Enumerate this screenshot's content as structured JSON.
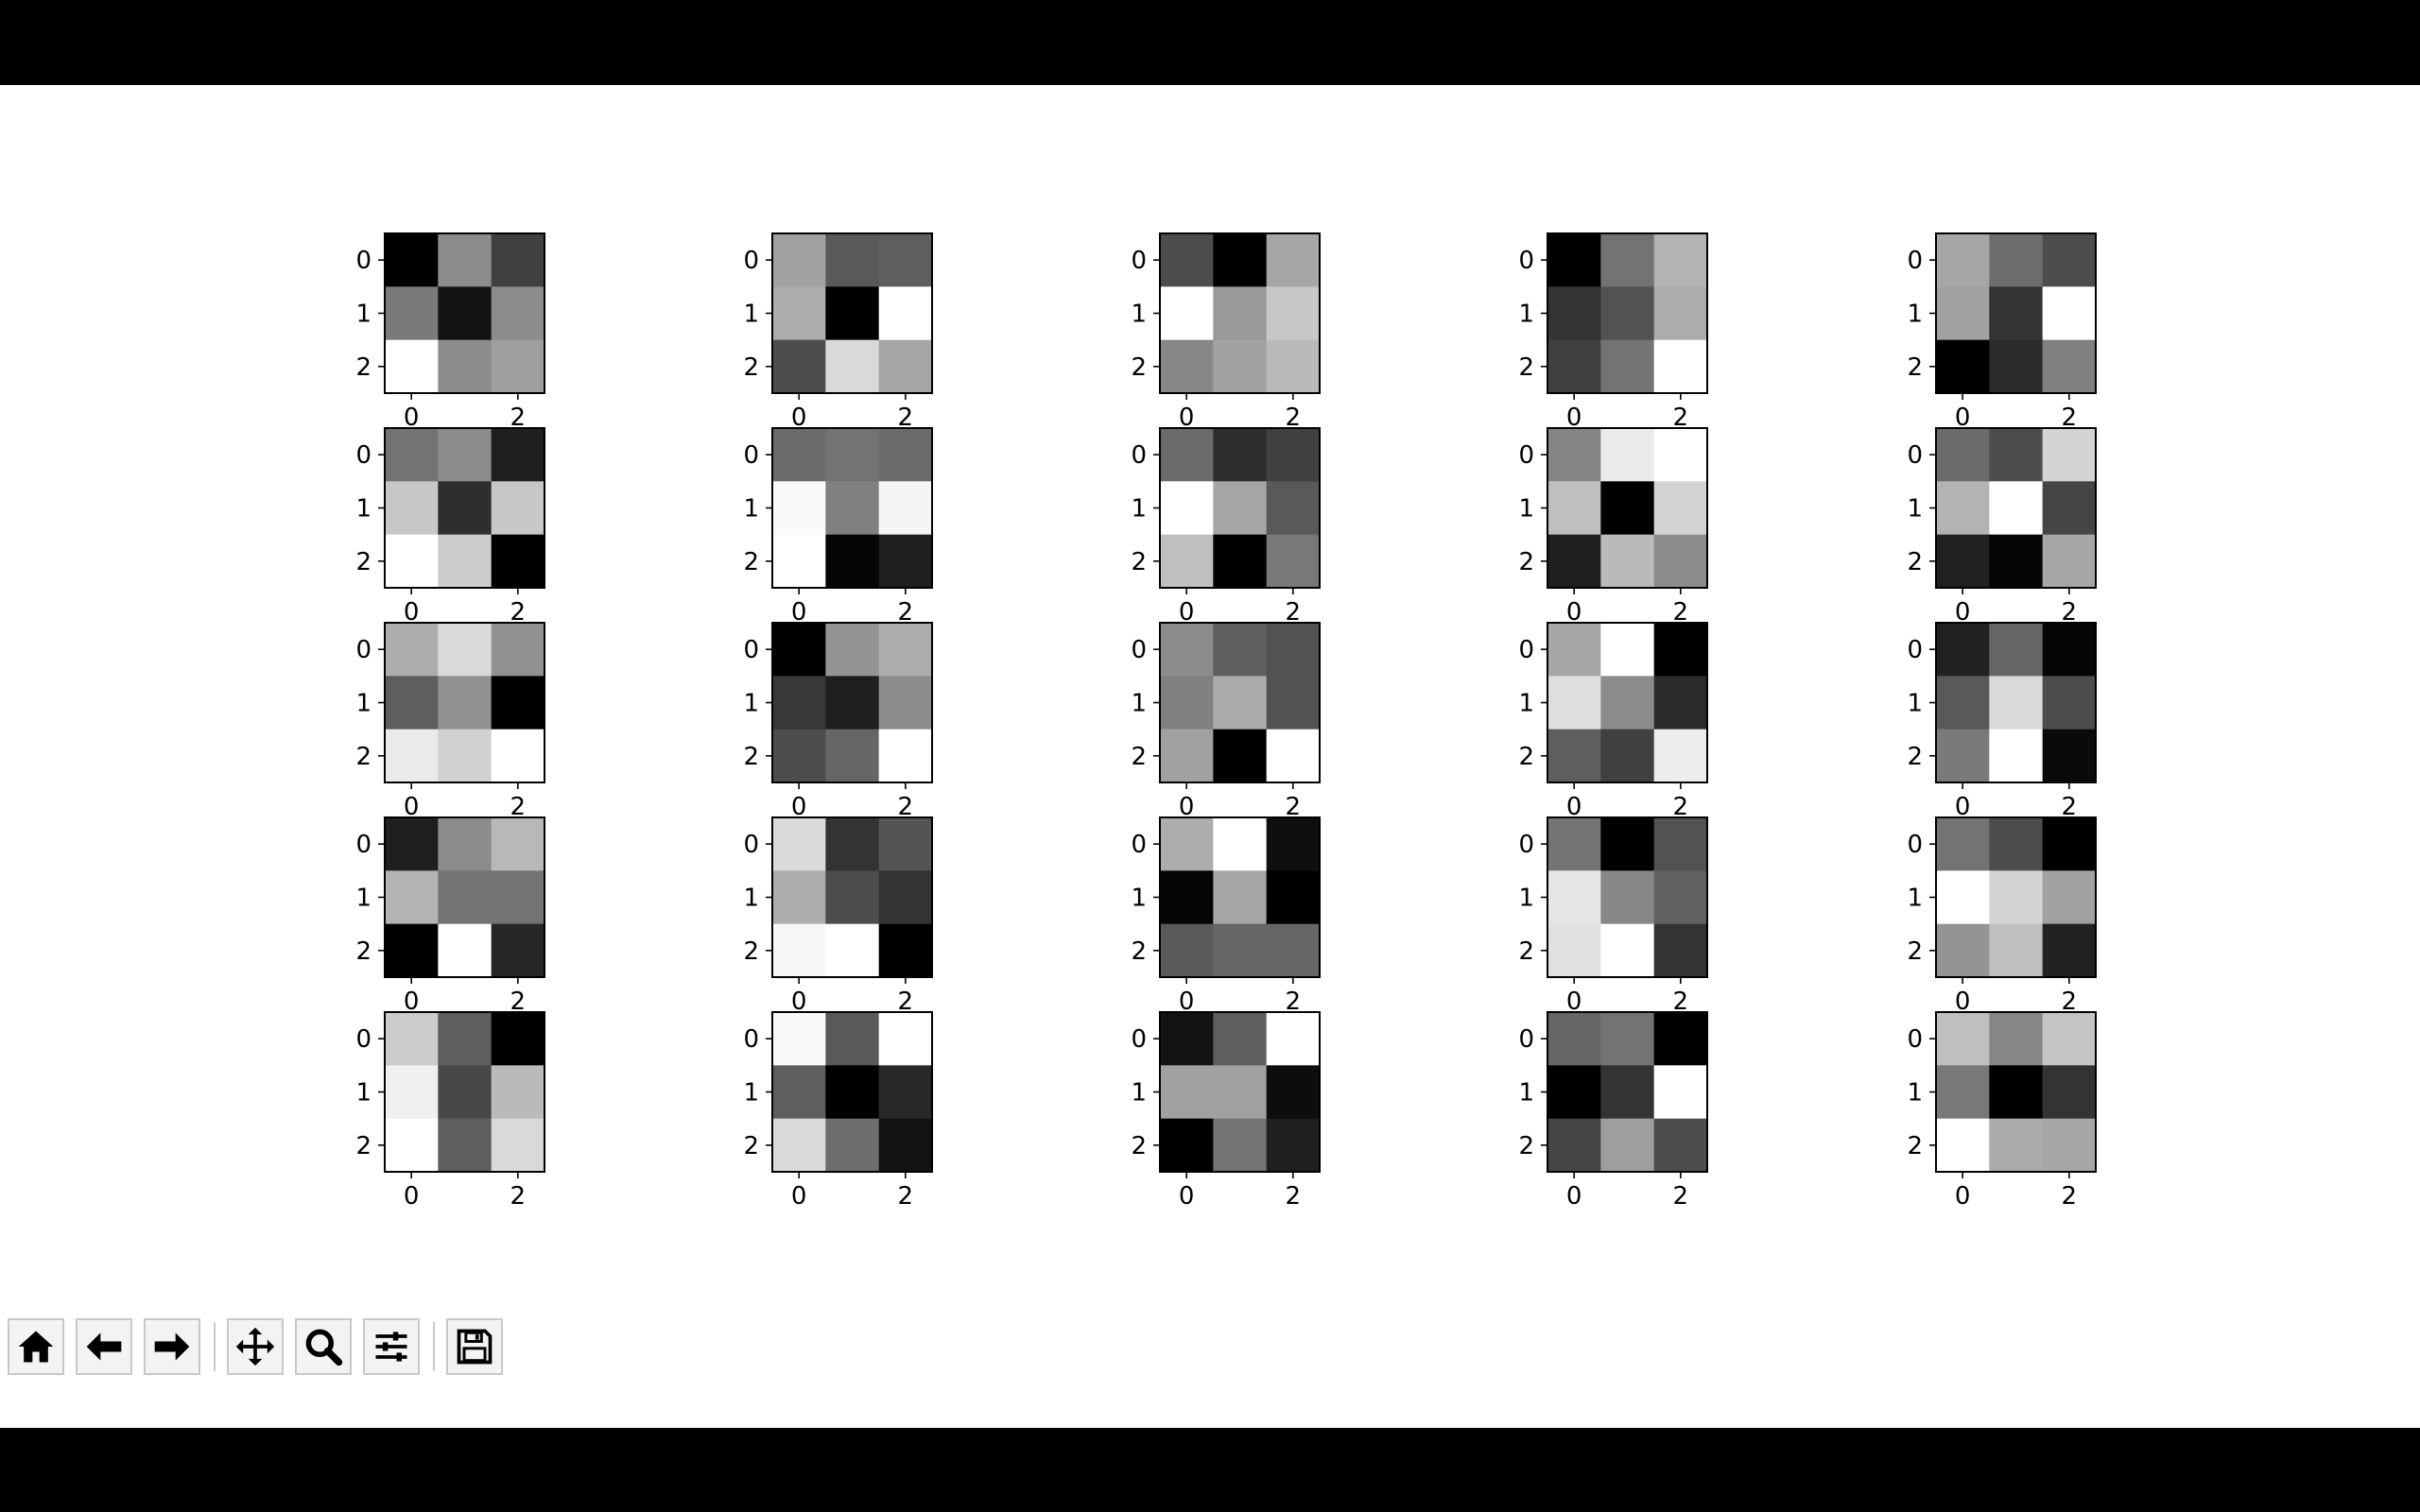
{
  "toolbar": {
    "buttons": [
      {
        "name": "home-button",
        "icon": "home-icon"
      },
      {
        "name": "back-button",
        "icon": "arrow-left-icon"
      },
      {
        "name": "forward-button",
        "icon": "arrow-right-icon"
      },
      {
        "name": "pan-button",
        "icon": "move-icon"
      },
      {
        "name": "zoom-button",
        "icon": "magnifier-icon"
      },
      {
        "name": "configure-subplots-button",
        "icon": "sliders-icon"
      },
      {
        "name": "save-button",
        "icon": "floppy-disk-icon"
      }
    ]
  },
  "chart_data": {
    "type": "heatmap",
    "colormap": "gray",
    "grid": "5x5",
    "xticks": [
      "0",
      "2"
    ],
    "yticks": [
      "0",
      "1",
      "2"
    ],
    "xlim": [
      -0.5,
      2.5
    ],
    "ylim": [
      2.5,
      -0.5
    ],
    "panels": [
      [
        [
          0.0,
          0.55,
          0.25
        ],
        [
          0.48,
          0.08,
          0.55
        ],
        [
          1.0,
          0.55,
          0.62
        ]
      ],
      [
        [
          0.63,
          0.35,
          0.37
        ],
        [
          0.68,
          0.0,
          1.0
        ],
        [
          0.3,
          0.85,
          0.65
        ]
      ],
      [
        [
          0.3,
          0.0,
          0.65
        ],
        [
          1.0,
          0.6,
          0.78
        ],
        [
          0.53,
          0.63,
          0.73
        ]
      ],
      [
        [
          0.0,
          0.45,
          0.7
        ],
        [
          0.2,
          0.32,
          0.68
        ],
        [
          0.25,
          0.45,
          1.0
        ]
      ],
      [
        [
          0.65,
          0.43,
          0.3
        ],
        [
          0.63,
          0.2,
          1.0
        ],
        [
          0.0,
          0.17,
          0.5
        ]
      ],
      [
        [
          0.45,
          0.55,
          0.12
        ],
        [
          0.78,
          0.18,
          0.78
        ],
        [
          1.0,
          0.8,
          0.0
        ]
      ],
      [
        [
          0.42,
          0.45,
          0.42
        ],
        [
          0.98,
          0.5,
          0.96
        ],
        [
          1.0,
          0.02,
          0.12
        ]
      ],
      [
        [
          0.42,
          0.18,
          0.25
        ],
        [
          1.0,
          0.65,
          0.35
        ],
        [
          0.75,
          0.0,
          0.47
        ]
      ],
      [
        [
          0.52,
          0.92,
          1.0
        ],
        [
          0.75,
          0.0,
          0.83
        ],
        [
          0.12,
          0.73,
          0.55
        ]
      ],
      [
        [
          0.42,
          0.3,
          0.83
        ],
        [
          0.7,
          1.0,
          0.27
        ],
        [
          0.13,
          0.02,
          0.65
        ]
      ],
      [
        [
          0.68,
          0.85,
          0.57
        ],
        [
          0.37,
          0.57,
          0.0
        ],
        [
          0.92,
          0.82,
          1.0
        ]
      ],
      [
        [
          0.0,
          0.58,
          0.68
        ],
        [
          0.22,
          0.12,
          0.55
        ],
        [
          0.3,
          0.4,
          1.0
        ]
      ],
      [
        [
          0.55,
          0.37,
          0.32
        ],
        [
          0.5,
          0.67,
          0.32
        ],
        [
          0.63,
          0.0,
          1.0
        ]
      ],
      [
        [
          0.65,
          1.0,
          0.0
        ],
        [
          0.87,
          0.55,
          0.17
        ],
        [
          0.37,
          0.25,
          0.93
        ]
      ],
      [
        [
          0.13,
          0.4,
          0.02
        ],
        [
          0.35,
          0.85,
          0.3
        ],
        [
          0.48,
          1.0,
          0.04
        ]
      ],
      [
        [
          0.12,
          0.55,
          0.72
        ],
        [
          0.7,
          0.45,
          0.45
        ],
        [
          0.0,
          1.0,
          0.15
        ]
      ],
      [
        [
          0.86,
          0.2,
          0.33
        ],
        [
          0.68,
          0.3,
          0.2
        ],
        [
          0.97,
          1.0,
          0.0
        ]
      ],
      [
        [
          0.68,
          1.0,
          0.06
        ],
        [
          0.02,
          0.65,
          0.0
        ],
        [
          0.35,
          0.4,
          0.4
        ]
      ],
      [
        [
          0.45,
          0.0,
          0.32
        ],
        [
          0.9,
          0.53,
          0.38
        ],
        [
          0.88,
          1.0,
          0.2
        ]
      ],
      [
        [
          0.45,
          0.3,
          0.0
        ],
        [
          1.0,
          0.83,
          0.63
        ],
        [
          0.58,
          0.75,
          0.13
        ]
      ],
      [
        [
          0.8,
          0.37,
          0.0
        ],
        [
          0.94,
          0.28,
          0.73
        ],
        [
          1.0,
          0.37,
          0.85
        ]
      ],
      [
        [
          0.98,
          0.35,
          1.0
        ],
        [
          0.37,
          0.0,
          0.16
        ],
        [
          0.86,
          0.43,
          0.07
        ]
      ],
      [
        [
          0.07,
          0.37,
          1.0
        ],
        [
          0.63,
          0.63,
          0.05
        ],
        [
          0.0,
          0.45,
          0.12
        ]
      ],
      [
        [
          0.4,
          0.45,
          0.0
        ],
        [
          0.0,
          0.2,
          1.0
        ],
        [
          0.27,
          0.62,
          0.3
        ]
      ],
      [
        [
          0.75,
          0.53,
          0.77
        ],
        [
          0.47,
          0.0,
          0.2
        ],
        [
          1.0,
          0.67,
          0.65
        ]
      ]
    ]
  }
}
